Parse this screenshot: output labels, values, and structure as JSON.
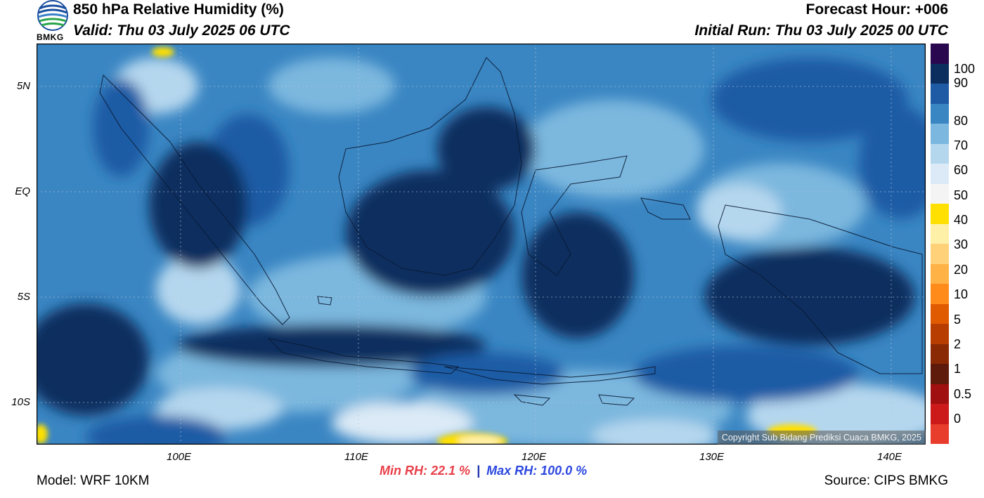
{
  "header": {
    "logo_text": "BMKG",
    "title": "850 hPa Relative Humidity (%)",
    "valid": "Valid: Thu 03 July 2025 06 UTC",
    "forecast_hour": "Forecast Hour: +006",
    "initial_run": "Initial Run: Thu 03 July 2025 00 UTC"
  },
  "axes": {
    "lat_ticks": [
      "5N",
      "EQ",
      "5S",
      "10S"
    ],
    "lon_ticks": [
      "100E",
      "110E",
      "120E",
      "130E",
      "140E"
    ]
  },
  "colorbar": {
    "labels": [
      "100",
      "90",
      "80",
      "70",
      "60",
      "50",
      "40",
      "30",
      "20",
      "10",
      "5",
      "2",
      "1",
      "0.5",
      "0"
    ],
    "colors": [
      "#2a0850",
      "#0b2e5e",
      "#1f5ba5",
      "#3a86c3",
      "#7bb7de",
      "#b5d7ee",
      "#dbeaf6",
      "#f4f4f4",
      "#ffe000",
      "#fff0a8",
      "#ffd27a",
      "#ffb347",
      "#ff8c1a",
      "#e05a00",
      "#b83d00",
      "#8a2a05",
      "#5e1a0a",
      "#a01010",
      "#cc1a1a",
      "#e83d2d"
    ]
  },
  "stats": {
    "min_rh": "Min RH:  22.1 %",
    "separator": "|",
    "max_rh": "Max RH: 100.0 %"
  },
  "footer": {
    "model": "Model: WRF 10KM",
    "source": "Source: CIPS BMKG"
  },
  "map": {
    "copyright": "Copyright Sub Bidang Prediksi Cuaca BMKG, 2025"
  }
}
